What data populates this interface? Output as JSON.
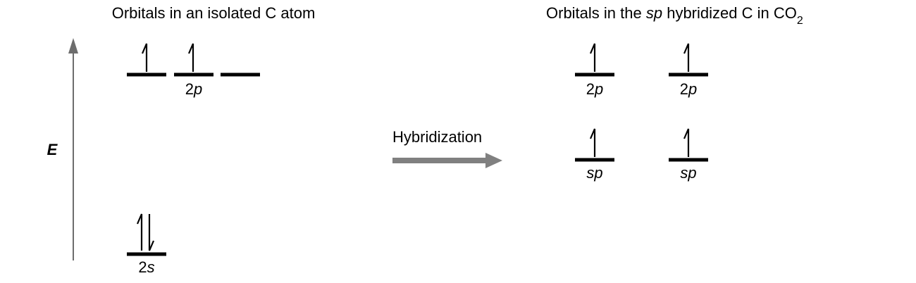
{
  "left_panel": {
    "title": "Orbitals in an isolated C atom",
    "orbitals": [
      {
        "label_main": "2",
        "label_italic": "p",
        "electrons": "1 up"
      },
      {
        "label_main": "2",
        "label_italic": "p",
        "electrons": "1 up"
      },
      {
        "label_main": "",
        "label_italic": "",
        "electrons": "0"
      },
      {
        "label_main": "2",
        "label_italic": "s",
        "electrons": "2 paired"
      }
    ],
    "p_group_label": {
      "main": "2",
      "italic": "p"
    },
    "s_label": {
      "main": "2",
      "italic": "s"
    }
  },
  "energy_axis": {
    "label": "E",
    "color": "#6d6d6d"
  },
  "process": {
    "label": "Hybridization",
    "arrow_color": "#808080"
  },
  "right_panel": {
    "title_prefix": "Orbitals in the ",
    "title_italic": "sp",
    "title_middle": " hybridized C in CO",
    "title_subscript": "2",
    "orbitals": [
      {
        "label_main": "2",
        "label_italic": "p",
        "electrons": "1 up"
      },
      {
        "label_main": "2",
        "label_italic": "p",
        "electrons": "1 up"
      },
      {
        "label_main": "",
        "label_italic": "sp",
        "electrons": "1 up"
      },
      {
        "label_main": "",
        "label_italic": "sp",
        "electrons": "1 up"
      }
    ]
  },
  "colors": {
    "line": "#000000",
    "axis": "#6d6d6d",
    "arrow": "#808080",
    "background": "#ffffff"
  }
}
